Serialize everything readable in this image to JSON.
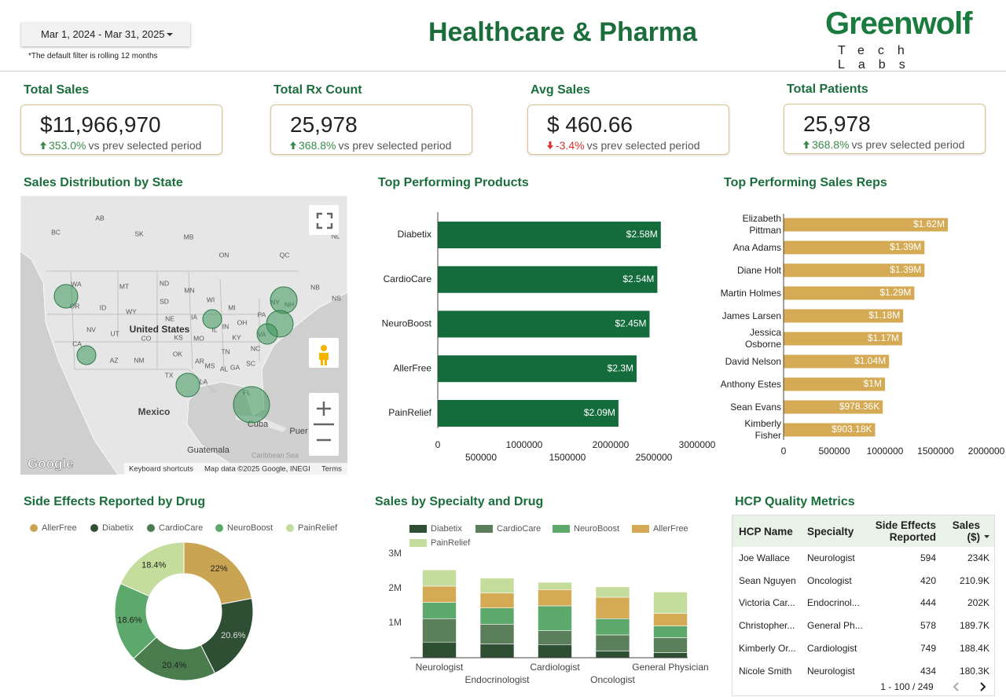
{
  "header": {
    "date_range": "Mar 1, 2024 - Mar 31, 2025",
    "filter_note": "*The default filter is rolling 12 months",
    "title": "Healthcare & Pharma",
    "logo": "Greenwolf",
    "logo_sub": "Tech Labs"
  },
  "kpis": [
    {
      "label": "Total Sales",
      "value": "$11,966,970",
      "change": "353.0%",
      "direction": "up",
      "comparison": "vs prev selected period"
    },
    {
      "label": "Total Rx Count",
      "value": "25,978",
      "change": "368.8%",
      "direction": "up",
      "comparison": "vs prev selected period"
    },
    {
      "label": "Avg Sales",
      "value": "$ 460.66",
      "change": "-3.4%",
      "direction": "down",
      "comparison": "vs prev selected period"
    },
    {
      "label": "Total Patients",
      "value": "25,978",
      "change": "368.8%",
      "direction": "up",
      "comparison": "vs prev selected period"
    }
  ],
  "map": {
    "title": "Sales Distribution by State",
    "labels": [
      "AB",
      "SK",
      "MB",
      "BC",
      "ON",
      "QC",
      "NL",
      "NB",
      "NS",
      "WA",
      "OR",
      "ID",
      "MT",
      "ND",
      "SD",
      "WY",
      "NV",
      "UT",
      "CO",
      "CA",
      "AZ",
      "NM",
      "TX",
      "OK",
      "KS",
      "NE",
      "MN",
      "IA",
      "WI",
      "MO",
      "AR",
      "LA",
      "MS",
      "AL",
      "TN",
      "KY",
      "IL",
      "IN",
      "OH",
      "MI",
      "GA",
      "SC",
      "NC",
      "VA",
      "PA",
      "NY",
      "NH",
      "FL",
      "United States",
      "Mexico",
      "Cuba",
      "Guatemala",
      "Caribbean Sea",
      "Puer"
    ],
    "logo": "Google",
    "attribution": [
      "Keyboard shortcuts",
      "Map data ©2025 Google, INEGI",
      "Terms"
    ]
  },
  "chart_data": [
    {
      "type": "bar",
      "orientation": "horizontal",
      "title": "Top Performing Products",
      "categories": [
        "Diabetix",
        "CardioCare",
        "NeuroBoost",
        "AllerFree",
        "PainRelief"
      ],
      "values": [
        2580000,
        2540000,
        2450000,
        2300000,
        2090000
      ],
      "value_labels": [
        "$2.58M",
        "$2.54M",
        "$2.45M",
        "$2.3M",
        "$2.09M"
      ],
      "color": "#146c3c",
      "xlim": [
        0,
        3000000
      ],
      "xticks": [
        0,
        500000,
        1000000,
        1500000,
        2000000,
        2500000,
        3000000
      ]
    },
    {
      "type": "bar",
      "orientation": "horizontal",
      "title": "Top Performing Sales Reps",
      "categories": [
        "Elizabeth Pittman",
        "Ana Adams",
        "Diane Holt",
        "Martin Holmes",
        "James Larsen",
        "Jessica Osborne",
        "David Nelson",
        "Anthony Estes",
        "Sean Evans",
        "Kimberly Fisher"
      ],
      "values": [
        1620000,
        1390000,
        1390000,
        1290000,
        1180000,
        1170000,
        1040000,
        1000000,
        978360,
        903180
      ],
      "value_labels": [
        "$1.62M",
        "$1.39M",
        "$1.39M",
        "$1.29M",
        "$1.18M",
        "$1.17M",
        "$1.04M",
        "$1M",
        "$978.36K",
        "$903.18K"
      ],
      "color": "#d4aa55",
      "xlim": [
        0,
        2000000
      ],
      "xticks": [
        0,
        500000,
        1000000,
        1500000,
        2000000
      ]
    },
    {
      "type": "pie",
      "donut": true,
      "title": "Side Effects Reported by Drug",
      "categories": [
        "AllerFree",
        "Diabetix",
        "CardioCare",
        "NeuroBoost",
        "PainRelief"
      ],
      "values": [
        22,
        20.6,
        20.4,
        18.6,
        18.4
      ],
      "value_labels": [
        "22%",
        "20.6%",
        "20.4%",
        "18.6%",
        "18.4%"
      ],
      "colors": [
        "#c9a452",
        "#2f4f35",
        "#4a7c4e",
        "#5da86b",
        "#c4dd9c"
      ]
    },
    {
      "type": "bar",
      "stacked": true,
      "title": "Sales by Specialty and Drug",
      "categories": [
        "Neurologist",
        "Endocrinologist",
        "Cardiologist",
        "Oncologist",
        "General Physician"
      ],
      "series": [
        {
          "name": "Diabetix",
          "color": "#2f4f35",
          "values": [
            450000,
            400000,
            380000,
            190000,
            150000
          ]
        },
        {
          "name": "CardioCare",
          "color": "#5a7f5a",
          "values": [
            680000,
            570000,
            400000,
            470000,
            430000
          ]
        },
        {
          "name": "NeuroBoost",
          "color": "#5da86b",
          "values": [
            470000,
            470000,
            720000,
            470000,
            340000
          ]
        },
        {
          "name": "AllerFree",
          "color": "#d4aa55",
          "values": [
            470000,
            430000,
            470000,
            620000,
            360000
          ]
        },
        {
          "name": "PainRelief",
          "color": "#c4dd9c",
          "values": [
            470000,
            430000,
            210000,
            300000,
            620000
          ]
        }
      ],
      "ylim": [
        0,
        3000000
      ],
      "yticks": [
        {
          "value": 1000000,
          "label": "1M"
        },
        {
          "value": 2000000,
          "label": "2M"
        },
        {
          "value": 3000000,
          "label": "3M"
        }
      ]
    }
  ],
  "table": {
    "title": "HCP Quality Metrics",
    "columns": [
      "HCP Name",
      "Specialty",
      "Side Effects Reported",
      "Sales ($)"
    ],
    "rows": [
      [
        "Joe Wallace",
        "Neurologist",
        "594",
        "234K"
      ],
      [
        "Sean Nguyen",
        "Oncologist",
        "420",
        "210.9K"
      ],
      [
        "Victoria Car...",
        "Endocrinol...",
        "444",
        "202K"
      ],
      [
        "Christopher...",
        "General Ph...",
        "578",
        "189.7K"
      ],
      [
        "Kimberly Or...",
        "Cardiologist",
        "749",
        "188.4K"
      ],
      [
        "Nicole Smith",
        "Neurologist",
        "434",
        "180.3K"
      ]
    ],
    "pagination": "1 - 100 / 249"
  }
}
